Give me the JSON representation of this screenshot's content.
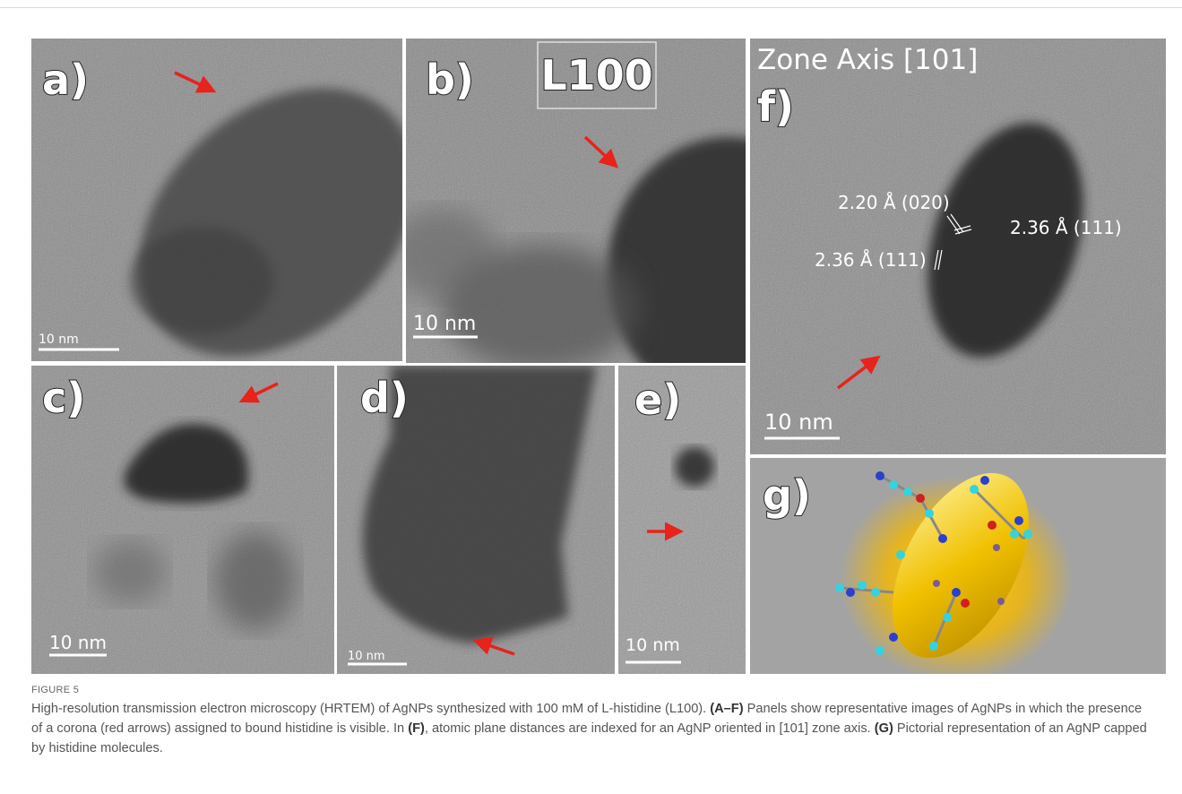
{
  "figure": {
    "panels": [
      {
        "label": "a)",
        "scale_bar": "10 nm"
      },
      {
        "label": "b)",
        "scale_bar": "10 nm",
        "inset_label": "L100"
      },
      {
        "label": "c)",
        "scale_bar": "10 nm"
      },
      {
        "label": "d)",
        "scale_bar": "10 nm"
      },
      {
        "label": "e)",
        "scale_bar": "10 nm"
      },
      {
        "label": "f)",
        "scale_bar": "10 nm",
        "header": "Zone Axis [101]",
        "annotations": [
          "2.20 Å (020)",
          "2.36 Å (111)",
          "2.36 Å (111)"
        ]
      },
      {
        "label": "g)"
      }
    ]
  },
  "caption": {
    "figure_label": "FIGURE 5",
    "segments": [
      {
        "text": "High-resolution transmission electron microscopy (HRTEM) of AgNPs synthesized with 100 mM of L-histidine (L100). ",
        "bold": false
      },
      {
        "text": "(A–F)",
        "bold": true
      },
      {
        "text": " Panels show representative images of AgNPs in which the presence of a corona (red arrows) assigned to bound histidine is visible. In ",
        "bold": false
      },
      {
        "text": "(F)",
        "bold": true
      },
      {
        "text": ", atomic plane distances are indexed for an AgNP oriented in [101] zone axis. ",
        "bold": false
      },
      {
        "text": "(G)",
        "bold": true
      },
      {
        "text": " Pictorial representation of an AgNP capped by histidine molecules.",
        "bold": false
      }
    ]
  }
}
